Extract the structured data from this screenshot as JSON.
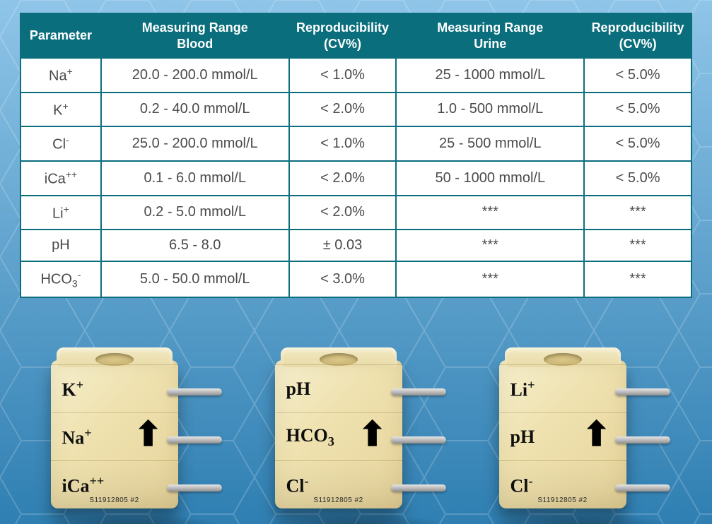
{
  "background": {
    "gradient_from": "#8fc5e8",
    "gradient_to": "#2f7fb2",
    "hex_line_color": "rgba(255,255,255,0.18)"
  },
  "table": {
    "header_bg": "#0a6e7d",
    "header_text": "#ffffff",
    "border_color": "#0a6e7d",
    "cell_bg": "#ffffff",
    "cell_text": "#4a4a4a",
    "header_fontsize": 18,
    "cell_fontsize": 20,
    "col_widths_pct": [
      12,
      28,
      16,
      28,
      16
    ],
    "columns": [
      "Parameter",
      "Measuring Range\nBlood",
      "Reproducibility\n(CV%)",
      "Measuring Range\nUrine",
      "Reproducibility\n(CV%)"
    ],
    "rows": [
      {
        "param_html": "Na<sup>+</sup>",
        "blood": "20.0 - 200.0 mmol/L",
        "cv_b": "< 1.0%",
        "urine": "25 - 1000 mmol/L",
        "cv_u": "< 5.0%"
      },
      {
        "param_html": "K<sup>+</sup>",
        "blood": "0.2 - 40.0 mmol/L",
        "cv_b": "< 2.0%",
        "urine": "1.0 - 500 mmol/L",
        "cv_u": "< 5.0%"
      },
      {
        "param_html": "Cl<sup>-</sup>",
        "blood": "25.0 - 200.0 mmol/L",
        "cv_b": "< 1.0%",
        "urine": "25 - 500 mmol/L",
        "cv_u": "< 5.0%"
      },
      {
        "param_html": "iCa<sup>++</sup>",
        "blood": "0.1 - 6.0 mmol/L",
        "cv_b": "< 2.0%",
        "urine": "50 - 1000 mmol/L",
        "cv_u": "< 5.0%"
      },
      {
        "param_html": "Li<sup>+</sup>",
        "blood": "0.2 - 5.0 mmol/L",
        "cv_b": "< 2.0%",
        "urine": "***",
        "cv_u": "***"
      },
      {
        "param_html": "pH",
        "blood": "6.5 - 8.0",
        "cv_b": "± 0.03",
        "urine": "***",
        "cv_u": "***"
      },
      {
        "param_html": "HCO<sub>3</sub><sup>-</sup>",
        "blood": "5.0 - 50.0 mmol/L",
        "cv_b": "< 3.0%",
        "urine": "***",
        "cv_u": "***"
      }
    ]
  },
  "electrodes": {
    "cube_fill_from": "#f6efce",
    "cube_fill_to": "#e6d39a",
    "pin_color": "#bdbdbd",
    "label_color": "#0e0e0e",
    "serial_text": "S11912805 #2",
    "modules": [
      {
        "labels_html": [
          "K<sup>+</sup>",
          "Na<sup>+</sup>",
          "iCa<sup>++</sup>"
        ]
      },
      {
        "labels_html": [
          "pH",
          "HCO<sub>3</sub>",
          "Cl<sup>-</sup>"
        ]
      },
      {
        "labels_html": [
          "Li<sup>+</sup>",
          "pH",
          "Cl<sup>-</sup>"
        ]
      }
    ]
  }
}
